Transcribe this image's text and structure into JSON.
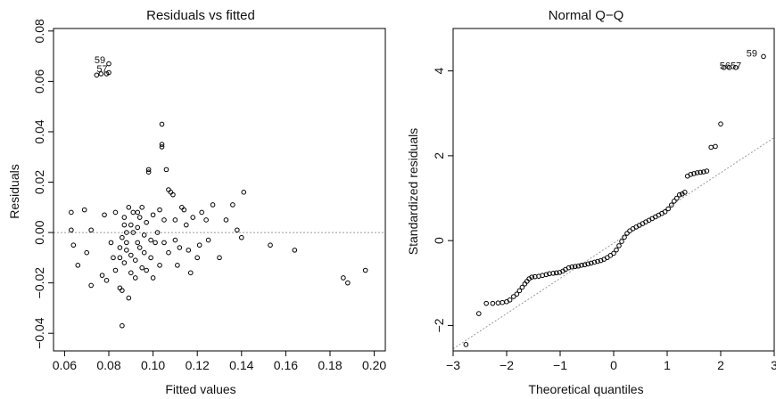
{
  "chart_data": [
    {
      "type": "scatter",
      "title": "Residuals vs fitted",
      "xlabel": "Fitted values",
      "ylabel": "Residuals",
      "xlim": [
        0.055,
        0.205
      ],
      "ylim": [
        -0.047,
        0.081
      ],
      "xticks": [
        0.06,
        0.08,
        0.1,
        0.12,
        0.14,
        0.16,
        0.18,
        0.2
      ],
      "xtick_labels": [
        "0.06",
        "0.08",
        "0.10",
        "0.12",
        "0.14",
        "0.16",
        "0.18",
        "0.20"
      ],
      "yticks": [
        -0.04,
        -0.02,
        0.0,
        0.02,
        0.04,
        0.06,
        0.08
      ],
      "ytick_labels": [
        "−0.04",
        "−0.02",
        "0.00",
        "0.02",
        "0.04",
        "0.06",
        "0.08"
      ],
      "reference_line": {
        "type": "horizontal",
        "y": 0
      },
      "annotations": [
        {
          "text": "59",
          "x": 0.0735,
          "y": 0.0672
        },
        {
          "text": "57",
          "x": 0.0745,
          "y": 0.0637
        }
      ],
      "points": [
        [
          0.0745,
          0.0625
        ],
        [
          0.0765,
          0.063
        ],
        [
          0.079,
          0.063
        ],
        [
          0.08,
          0.0635
        ],
        [
          0.08,
          0.067
        ],
        [
          0.063,
          0.008
        ],
        [
          0.063,
          0.001
        ],
        [
          0.064,
          -0.005
        ],
        [
          0.066,
          -0.013
        ],
        [
          0.069,
          0.009
        ],
        [
          0.07,
          -0.008
        ],
        [
          0.072,
          -0.021
        ],
        [
          0.072,
          0.001
        ],
        [
          0.077,
          -0.017
        ],
        [
          0.078,
          0.007
        ],
        [
          0.079,
          -0.019
        ],
        [
          0.081,
          -0.004
        ],
        [
          0.082,
          -0.01
        ],
        [
          0.083,
          -0.015
        ],
        [
          0.083,
          0.008
        ],
        [
          0.085,
          -0.01
        ],
        [
          0.085,
          -0.006
        ],
        [
          0.086,
          -0.002
        ],
        [
          0.085,
          -0.022
        ],
        [
          0.086,
          -0.023
        ],
        [
          0.086,
          -0.037
        ],
        [
          0.087,
          0.006
        ],
        [
          0.087,
          0.003
        ],
        [
          0.087,
          -0.012
        ],
        [
          0.088,
          0.0
        ],
        [
          0.088,
          -0.004
        ],
        [
          0.088,
          -0.007
        ],
        [
          0.089,
          0.01
        ],
        [
          0.089,
          -0.026
        ],
        [
          0.09,
          -0.016
        ],
        [
          0.09,
          0.003
        ],
        [
          0.09,
          -0.009
        ],
        [
          0.091,
          0.0
        ],
        [
          0.091,
          0.008
        ],
        [
          0.092,
          -0.018
        ],
        [
          0.092,
          -0.011
        ],
        [
          0.093,
          0.008
        ],
        [
          0.093,
          0.002
        ],
        [
          0.093,
          -0.004
        ],
        [
          0.094,
          -0.006
        ],
        [
          0.094,
          0.006
        ],
        [
          0.095,
          -0.014
        ],
        [
          0.095,
          0.01
        ],
        [
          0.096,
          -0.001
        ],
        [
          0.096,
          -0.008
        ],
        [
          0.097,
          -0.015
        ],
        [
          0.097,
          0.004
        ],
        [
          0.098,
          0.025
        ],
        [
          0.098,
          0.024
        ],
        [
          0.099,
          -0.01
        ],
        [
          0.099,
          -0.003
        ],
        [
          0.1,
          -0.018
        ],
        [
          0.1,
          0.007
        ],
        [
          0.101,
          -0.004
        ],
        [
          0.102,
          0.0
        ],
        [
          0.103,
          0.009
        ],
        [
          0.103,
          -0.013
        ],
        [
          0.104,
          0.035
        ],
        [
          0.104,
          0.034
        ],
        [
          0.104,
          0.043
        ],
        [
          0.105,
          0.005
        ],
        [
          0.105,
          -0.004
        ],
        [
          0.106,
          0.025
        ],
        [
          0.107,
          -0.008
        ],
        [
          0.107,
          0.017
        ],
        [
          0.108,
          0.016
        ],
        [
          0.109,
          0.015
        ],
        [
          0.11,
          0.005
        ],
        [
          0.11,
          -0.003
        ],
        [
          0.111,
          -0.013
        ],
        [
          0.112,
          -0.006
        ],
        [
          0.113,
          0.01
        ],
        [
          0.114,
          0.009
        ],
        [
          0.115,
          0.003
        ],
        [
          0.116,
          -0.007
        ],
        [
          0.117,
          -0.016
        ],
        [
          0.118,
          0.006
        ],
        [
          0.12,
          -0.01
        ],
        [
          0.121,
          -0.005
        ],
        [
          0.122,
          0.008
        ],
        [
          0.124,
          0.005
        ],
        [
          0.125,
          -0.003
        ],
        [
          0.127,
          0.011
        ],
        [
          0.13,
          -0.01
        ],
        [
          0.133,
          0.005
        ],
        [
          0.136,
          0.011
        ],
        [
          0.138,
          0.001
        ],
        [
          0.14,
          -0.002
        ],
        [
          0.141,
          0.016
        ],
        [
          0.153,
          -0.005
        ],
        [
          0.164,
          -0.007
        ],
        [
          0.186,
          -0.018
        ],
        [
          0.188,
          -0.02
        ],
        [
          0.196,
          -0.015
        ]
      ]
    },
    {
      "type": "scatter",
      "title": "Normal Q−Q",
      "xlabel": "Theoretical quantiles",
      "ylabel": "Standardized residuals",
      "xlim": [
        -3.0,
        3.0
      ],
      "ylim": [
        -2.6,
        5.0
      ],
      "xticks": [
        -3,
        -2,
        -1,
        0,
        1,
        2,
        3
      ],
      "xtick_labels": [
        "−3",
        "−2",
        "−1",
        "0",
        "1",
        "2",
        "3"
      ],
      "yticks": [
        -2,
        0,
        2,
        4
      ],
      "ytick_labels": [
        "−2",
        "0",
        "2",
        "4"
      ],
      "reference_line": {
        "type": "line",
        "x1": -3.0,
        "y1": -2.55,
        "x2": 3.0,
        "y2": 2.43
      },
      "annotations": [
        {
          "text": "59",
          "x": 2.48,
          "y": 4.34
        },
        {
          "text": "5657",
          "x": 1.98,
          "y": 4.05
        }
      ],
      "points": [
        [
          -2.76,
          -2.45
        ],
        [
          -2.52,
          -1.72
        ],
        [
          -2.38,
          -1.48
        ],
        [
          -2.26,
          -1.48
        ],
        [
          -2.16,
          -1.47
        ],
        [
          -2.08,
          -1.46
        ],
        [
          -2.0,
          -1.44
        ],
        [
          -1.94,
          -1.4
        ],
        [
          -1.87,
          -1.32
        ],
        [
          -1.81,
          -1.26
        ],
        [
          -1.76,
          -1.18
        ],
        [
          -1.71,
          -1.1
        ],
        [
          -1.66,
          -1.02
        ],
        [
          -1.62,
          -0.96
        ],
        [
          -1.58,
          -0.9
        ],
        [
          -1.53,
          -0.86
        ],
        [
          -1.47,
          -0.85
        ],
        [
          -1.4,
          -0.84
        ],
        [
          -1.33,
          -0.82
        ],
        [
          -1.26,
          -0.8
        ],
        [
          -1.2,
          -0.78
        ],
        [
          -1.13,
          -0.77
        ],
        [
          -1.07,
          -0.76
        ],
        [
          -1.01,
          -0.75
        ],
        [
          -0.95,
          -0.72
        ],
        [
          -0.9,
          -0.68
        ],
        [
          -0.84,
          -0.64
        ],
        [
          -0.78,
          -0.62
        ],
        [
          -0.72,
          -0.61
        ],
        [
          -0.66,
          -0.6
        ],
        [
          -0.6,
          -0.58
        ],
        [
          -0.54,
          -0.57
        ],
        [
          -0.48,
          -0.55
        ],
        [
          -0.42,
          -0.53
        ],
        [
          -0.36,
          -0.51
        ],
        [
          -0.3,
          -0.49
        ],
        [
          -0.24,
          -0.47
        ],
        [
          -0.18,
          -0.44
        ],
        [
          -0.12,
          -0.4
        ],
        [
          -0.06,
          -0.35
        ],
        [
          0.0,
          -0.3
        ],
        [
          0.05,
          -0.22
        ],
        [
          0.1,
          -0.12
        ],
        [
          0.15,
          -0.02
        ],
        [
          0.2,
          0.08
        ],
        [
          0.25,
          0.17
        ],
        [
          0.3,
          0.23
        ],
        [
          0.36,
          0.28
        ],
        [
          0.42,
          0.32
        ],
        [
          0.48,
          0.36
        ],
        [
          0.54,
          0.4
        ],
        [
          0.6,
          0.44
        ],
        [
          0.66,
          0.48
        ],
        [
          0.72,
          0.52
        ],
        [
          0.78,
          0.56
        ],
        [
          0.84,
          0.6
        ],
        [
          0.9,
          0.64
        ],
        [
          0.96,
          0.68
        ],
        [
          1.02,
          0.75
        ],
        [
          1.08,
          0.84
        ],
        [
          1.13,
          0.93
        ],
        [
          1.18,
          1.0
        ],
        [
          1.23,
          1.08
        ],
        [
          1.28,
          1.1
        ],
        [
          1.33,
          1.14
        ],
        [
          1.38,
          1.52
        ],
        [
          1.44,
          1.56
        ],
        [
          1.5,
          1.58
        ],
        [
          1.56,
          1.6
        ],
        [
          1.62,
          1.61
        ],
        [
          1.68,
          1.62
        ],
        [
          1.74,
          1.64
        ],
        [
          1.82,
          2.2
        ],
        [
          1.9,
          2.22
        ],
        [
          2.0,
          2.75
        ],
        [
          2.06,
          4.08
        ],
        [
          2.16,
          4.08
        ],
        [
          2.28,
          4.08
        ],
        [
          2.8,
          4.34
        ]
      ]
    }
  ]
}
